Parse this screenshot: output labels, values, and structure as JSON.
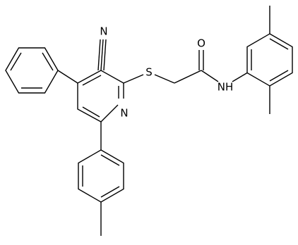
{
  "labels": {
    "nitrile_n": "N",
    "sulfur": "S",
    "oxygen": "O",
    "amide_nh": "NH",
    "pyridine_n": "N"
  }
}
